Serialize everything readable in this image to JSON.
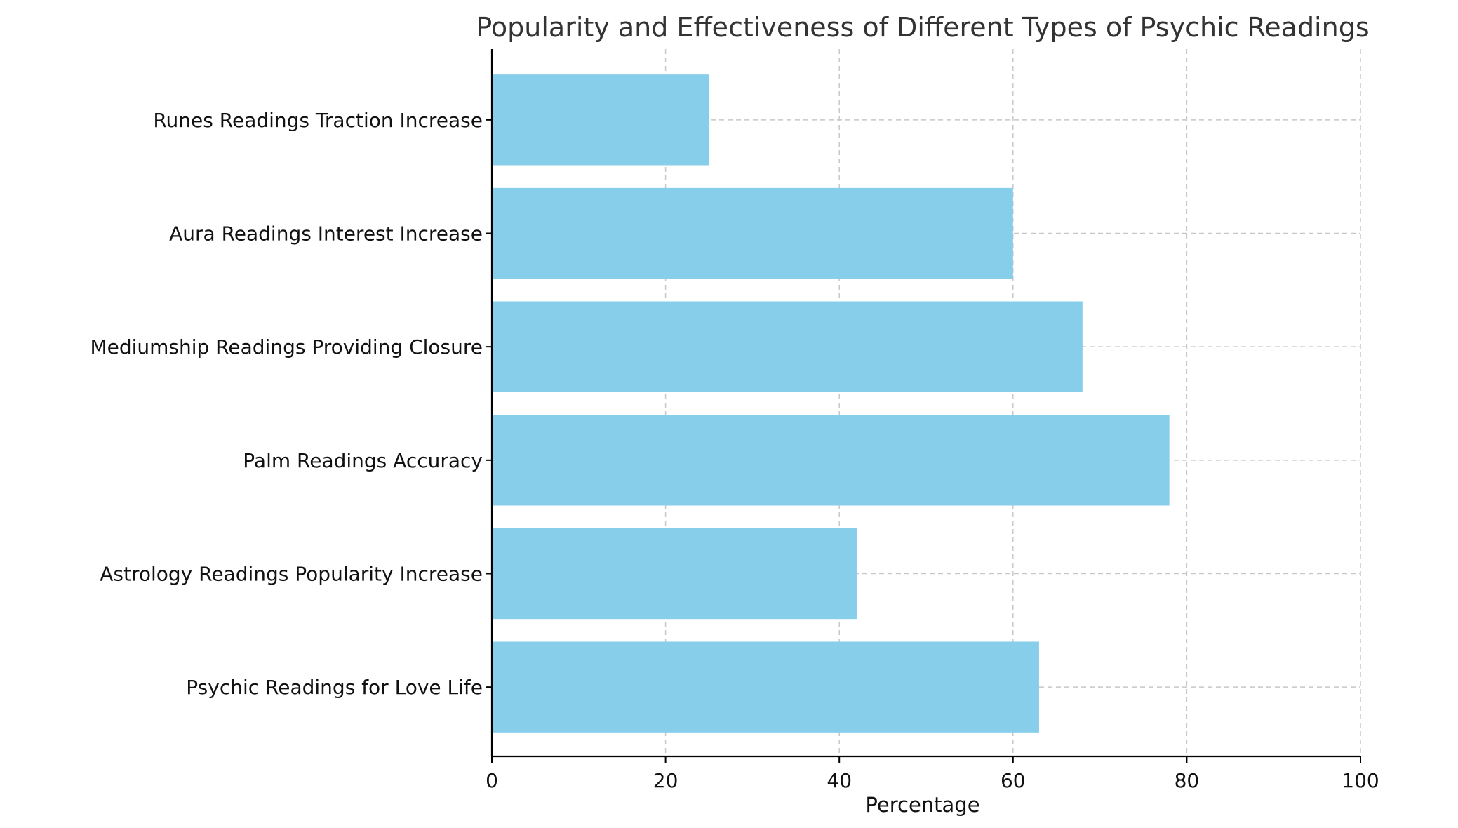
{
  "chart_data": {
    "type": "bar",
    "orientation": "horizontal",
    "title": "Popularity and Effectiveness of Different Types of Psychic Readings",
    "xlabel": "Percentage",
    "ylabel": "",
    "xlim": [
      0,
      100
    ],
    "xticks": [
      "0",
      "20",
      "40",
      "60",
      "80",
      "100"
    ],
    "categories": [
      "Psychic Readings for Love Life",
      "Astrology Readings Popularity Increase",
      "Palm Readings Accuracy",
      "Mediumship Readings Providing Closure",
      "Aura Readings Interest Increase",
      "Runes Readings Traction Increase"
    ],
    "values": [
      63,
      42,
      78,
      68,
      60,
      25
    ],
    "bar_color": "#87CEEB",
    "grid": true,
    "legend": "none"
  }
}
